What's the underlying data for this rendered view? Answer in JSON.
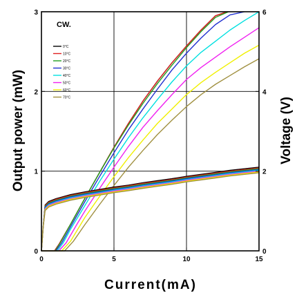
{
  "chart_data": {
    "type": "line",
    "annotation": "CW.",
    "xlabel": "Current(mA)",
    "ylabel_left": "Output power (mW)",
    "ylabel_right": "Voltage (V)",
    "xlim": [
      0,
      15
    ],
    "ylim_left": [
      0,
      3
    ],
    "ylim_right": [
      0,
      6
    ],
    "xticks": [
      "0",
      "5",
      "10",
      "15"
    ],
    "yticks_left": [
      "0",
      "1",
      "2",
      "3"
    ],
    "yticks_right": [
      "0",
      "2",
      "4",
      "6"
    ],
    "grid": true,
    "legend_position": "top-left",
    "legend": [
      "0°C",
      "10°C",
      "20°C",
      "30°C",
      "40°C",
      "50°C",
      "60°C",
      "70°C"
    ],
    "power_series": [
      {
        "name": "0°C",
        "color": "#000000",
        "points": [
          [
            0,
            0
          ],
          [
            0.9,
            0
          ],
          [
            1.2,
            0.08
          ],
          [
            2,
            0.33
          ],
          [
            3,
            0.66
          ],
          [
            4,
            0.98
          ],
          [
            5,
            1.3
          ],
          [
            6,
            1.6
          ],
          [
            7,
            1.88
          ],
          [
            8,
            2.13
          ],
          [
            9,
            2.36
          ],
          [
            10,
            2.57
          ],
          [
            11,
            2.77
          ],
          [
            12,
            2.95
          ],
          [
            12.8,
            3.0
          ]
        ]
      },
      {
        "name": "10°C",
        "color": "#e02020",
        "points": [
          [
            0,
            0
          ],
          [
            0.9,
            0
          ],
          [
            1.2,
            0.08
          ],
          [
            2,
            0.33
          ],
          [
            3,
            0.66
          ],
          [
            4,
            0.98
          ],
          [
            5,
            1.3
          ],
          [
            6,
            1.6
          ],
          [
            7,
            1.88
          ],
          [
            8,
            2.13
          ],
          [
            9,
            2.36
          ],
          [
            10,
            2.57
          ],
          [
            11,
            2.77
          ],
          [
            12,
            2.95
          ],
          [
            12.8,
            3.0
          ]
        ]
      },
      {
        "name": "20°C",
        "color": "#22a022",
        "points": [
          [
            0,
            0
          ],
          [
            0.95,
            0
          ],
          [
            1.3,
            0.1
          ],
          [
            2,
            0.33
          ],
          [
            3,
            0.66
          ],
          [
            4,
            0.98
          ],
          [
            5,
            1.29
          ],
          [
            6,
            1.58
          ],
          [
            7,
            1.85
          ],
          [
            8,
            2.1
          ],
          [
            9,
            2.33
          ],
          [
            10,
            2.55
          ],
          [
            11,
            2.75
          ],
          [
            12,
            2.93
          ],
          [
            12.9,
            3.0
          ]
        ]
      },
      {
        "name": "30°C",
        "color": "#2030d0",
        "points": [
          [
            0,
            0
          ],
          [
            1,
            0
          ],
          [
            1.4,
            0.1
          ],
          [
            2,
            0.3
          ],
          [
            3,
            0.62
          ],
          [
            4,
            0.93
          ],
          [
            5,
            1.23
          ],
          [
            6,
            1.52
          ],
          [
            7,
            1.78
          ],
          [
            8,
            2.03
          ],
          [
            9,
            2.27
          ],
          [
            10,
            2.48
          ],
          [
            11,
            2.67
          ],
          [
            12,
            2.84
          ],
          [
            13,
            2.96
          ],
          [
            14,
            3.0
          ]
        ]
      },
      {
        "name": "40°C",
        "color": "#00e0e0",
        "points": [
          [
            0,
            0
          ],
          [
            1.1,
            0
          ],
          [
            1.5,
            0.1
          ],
          [
            2,
            0.27
          ],
          [
            3,
            0.57
          ],
          [
            4,
            0.87
          ],
          [
            5,
            1.15
          ],
          [
            6,
            1.42
          ],
          [
            7,
            1.67
          ],
          [
            8,
            1.9
          ],
          [
            9,
            2.12
          ],
          [
            10,
            2.32
          ],
          [
            11,
            2.49
          ],
          [
            12,
            2.63
          ],
          [
            13,
            2.77
          ],
          [
            14,
            2.89
          ],
          [
            15,
            3.0
          ]
        ]
      },
      {
        "name": "50°C",
        "color": "#f020f0",
        "points": [
          [
            0,
            0
          ],
          [
            1.2,
            0
          ],
          [
            1.7,
            0.1
          ],
          [
            2.5,
            0.35
          ],
          [
            3,
            0.5
          ],
          [
            4,
            0.78
          ],
          [
            5,
            1.05
          ],
          [
            6,
            1.31
          ],
          [
            7,
            1.55
          ],
          [
            8,
            1.76
          ],
          [
            9,
            1.96
          ],
          [
            10,
            2.15
          ],
          [
            11,
            2.3
          ],
          [
            12,
            2.43
          ],
          [
            13,
            2.56
          ],
          [
            14,
            2.68
          ],
          [
            15,
            2.8
          ]
        ]
      },
      {
        "name": "60°C",
        "color": "#f0f000",
        "points": [
          [
            0,
            0
          ],
          [
            1.4,
            0
          ],
          [
            2,
            0.12
          ],
          [
            3,
            0.42
          ],
          [
            4,
            0.68
          ],
          [
            5,
            0.93
          ],
          [
            6,
            1.17
          ],
          [
            7,
            1.39
          ],
          [
            8,
            1.6
          ],
          [
            9,
            1.78
          ],
          [
            10,
            1.96
          ],
          [
            11,
            2.11
          ],
          [
            12,
            2.24
          ],
          [
            13,
            2.36
          ],
          [
            14,
            2.48
          ],
          [
            15,
            2.58
          ]
        ]
      },
      {
        "name": "70°C",
        "color": "#a09040",
        "points": [
          [
            0,
            0
          ],
          [
            1.6,
            0
          ],
          [
            2.2,
            0.12
          ],
          [
            3,
            0.33
          ],
          [
            4,
            0.58
          ],
          [
            5,
            0.82
          ],
          [
            6,
            1.05
          ],
          [
            7,
            1.26
          ],
          [
            8,
            1.46
          ],
          [
            9,
            1.64
          ],
          [
            10,
            1.81
          ],
          [
            11,
            1.96
          ],
          [
            12,
            2.09
          ],
          [
            13,
            2.2
          ],
          [
            14,
            2.31
          ],
          [
            15,
            2.41
          ]
        ]
      }
    ],
    "voltage_series": [
      {
        "name": "0°C",
        "color": "#000000",
        "points": [
          [
            0,
            0
          ],
          [
            0.12,
            0.6
          ],
          [
            0.25,
            1.15
          ],
          [
            0.5,
            1.24
          ],
          [
            1,
            1.31
          ],
          [
            2,
            1.41
          ],
          [
            3,
            1.48
          ],
          [
            4,
            1.54
          ],
          [
            5,
            1.6
          ],
          [
            6,
            1.65
          ],
          [
            7,
            1.71
          ],
          [
            8,
            1.76
          ],
          [
            9,
            1.81
          ],
          [
            10,
            1.87
          ],
          [
            11,
            1.92
          ],
          [
            12,
            1.97
          ],
          [
            13,
            2.02
          ],
          [
            14,
            2.06
          ],
          [
            15,
            2.1
          ]
        ]
      },
      {
        "name": "10°C",
        "color": "#e02020",
        "points": [
          [
            0,
            0
          ],
          [
            0.12,
            0.6
          ],
          [
            0.25,
            1.13
          ],
          [
            0.5,
            1.22
          ],
          [
            1,
            1.29
          ],
          [
            2,
            1.39
          ],
          [
            3,
            1.46
          ],
          [
            4,
            1.52
          ],
          [
            5,
            1.58
          ],
          [
            6,
            1.63
          ],
          [
            7,
            1.69
          ],
          [
            8,
            1.74
          ],
          [
            9,
            1.79
          ],
          [
            10,
            1.85
          ],
          [
            11,
            1.9
          ],
          [
            12,
            1.95
          ],
          [
            13,
            2.0
          ],
          [
            14,
            2.04
          ],
          [
            15,
            2.08
          ]
        ]
      },
      {
        "name": "20°C",
        "color": "#22a022",
        "points": [
          [
            0,
            0
          ],
          [
            0.12,
            0.6
          ],
          [
            0.25,
            1.11
          ],
          [
            0.5,
            1.2
          ],
          [
            1,
            1.27
          ],
          [
            2,
            1.37
          ],
          [
            3,
            1.44
          ],
          [
            4,
            1.5
          ],
          [
            5,
            1.56
          ],
          [
            6,
            1.61
          ],
          [
            7,
            1.67
          ],
          [
            8,
            1.72
          ],
          [
            9,
            1.77
          ],
          [
            10,
            1.83
          ],
          [
            11,
            1.88
          ],
          [
            12,
            1.93
          ],
          [
            13,
            1.98
          ],
          [
            14,
            2.02
          ],
          [
            15,
            2.06
          ]
        ]
      },
      {
        "name": "30°C",
        "color": "#2030d0",
        "points": [
          [
            0,
            0
          ],
          [
            0.12,
            0.6
          ],
          [
            0.25,
            1.09
          ],
          [
            0.5,
            1.18
          ],
          [
            1,
            1.25
          ],
          [
            2,
            1.35
          ],
          [
            3,
            1.42
          ],
          [
            4,
            1.48
          ],
          [
            5,
            1.54
          ],
          [
            6,
            1.59
          ],
          [
            7,
            1.65
          ],
          [
            8,
            1.7
          ],
          [
            9,
            1.75
          ],
          [
            10,
            1.81
          ],
          [
            11,
            1.86
          ],
          [
            12,
            1.91
          ],
          [
            13,
            1.96
          ],
          [
            14,
            2.0
          ],
          [
            15,
            2.04
          ]
        ]
      },
      {
        "name": "40°C",
        "color": "#00e0e0",
        "points": [
          [
            0,
            0
          ],
          [
            0.12,
            0.6
          ],
          [
            0.25,
            1.07
          ],
          [
            0.5,
            1.16
          ],
          [
            1,
            1.23
          ],
          [
            2,
            1.33
          ],
          [
            3,
            1.4
          ],
          [
            4,
            1.46
          ],
          [
            5,
            1.52
          ],
          [
            6,
            1.57
          ],
          [
            7,
            1.63
          ],
          [
            8,
            1.68
          ],
          [
            9,
            1.73
          ],
          [
            10,
            1.79
          ],
          [
            11,
            1.84
          ],
          [
            12,
            1.89
          ],
          [
            13,
            1.94
          ],
          [
            14,
            1.98
          ],
          [
            15,
            2.02
          ]
        ]
      },
      {
        "name": "50°C",
        "color": "#f020f0",
        "points": [
          [
            0,
            0
          ],
          [
            0.12,
            0.6
          ],
          [
            0.25,
            1.05
          ],
          [
            0.5,
            1.14
          ],
          [
            1,
            1.21
          ],
          [
            2,
            1.31
          ],
          [
            3,
            1.38
          ],
          [
            4,
            1.44
          ],
          [
            5,
            1.5
          ],
          [
            6,
            1.55
          ],
          [
            7,
            1.61
          ],
          [
            8,
            1.66
          ],
          [
            9,
            1.71
          ],
          [
            10,
            1.77
          ],
          [
            11,
            1.82
          ],
          [
            12,
            1.87
          ],
          [
            13,
            1.92
          ],
          [
            14,
            1.96
          ],
          [
            15,
            2.0
          ]
        ]
      },
      {
        "name": "60°C",
        "color": "#f0f000",
        "points": [
          [
            0,
            0
          ],
          [
            0.12,
            0.6
          ],
          [
            0.25,
            1.03
          ],
          [
            0.5,
            1.12
          ],
          [
            1,
            1.19
          ],
          [
            2,
            1.29
          ],
          [
            3,
            1.36
          ],
          [
            4,
            1.42
          ],
          [
            5,
            1.48
          ],
          [
            6,
            1.53
          ],
          [
            7,
            1.59
          ],
          [
            8,
            1.64
          ],
          [
            9,
            1.69
          ],
          [
            10,
            1.75
          ],
          [
            11,
            1.8
          ],
          [
            12,
            1.85
          ],
          [
            13,
            1.9
          ],
          [
            14,
            1.94
          ],
          [
            15,
            1.98
          ]
        ]
      },
      {
        "name": "70°C",
        "color": "#a09040",
        "points": [
          [
            0,
            0
          ],
          [
            0.12,
            0.6
          ],
          [
            0.25,
            1.01
          ],
          [
            0.5,
            1.1
          ],
          [
            1,
            1.17
          ],
          [
            2,
            1.27
          ],
          [
            3,
            1.34
          ],
          [
            4,
            1.4
          ],
          [
            5,
            1.46
          ],
          [
            6,
            1.51
          ],
          [
            7,
            1.57
          ],
          [
            8,
            1.62
          ],
          [
            9,
            1.67
          ],
          [
            10,
            1.73
          ],
          [
            11,
            1.78
          ],
          [
            12,
            1.83
          ],
          [
            13,
            1.88
          ],
          [
            14,
            1.92
          ],
          [
            15,
            1.96
          ]
        ]
      }
    ]
  }
}
